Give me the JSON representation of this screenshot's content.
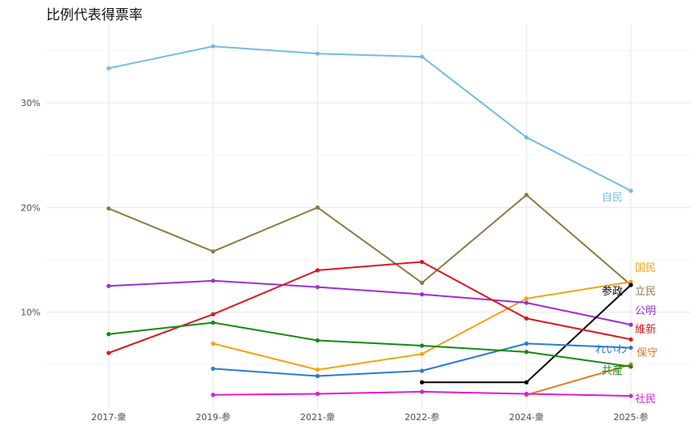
{
  "chart_data": {
    "type": "line",
    "title": "比例代表得票率",
    "xlabel": "",
    "ylabel": "",
    "categories": [
      "2017-衆",
      "2019-参",
      "2021-衆",
      "2022-参",
      "2024-衆",
      "2025-参"
    ],
    "yticks": [
      "10%",
      "20%",
      "30%"
    ],
    "ylim": [
      1.0,
      37.5
    ],
    "grid": true,
    "legend": "none (direct labels at line ends)",
    "series": [
      {
        "name": "自民",
        "color": "#74BBE7",
        "values": [
          33.3,
          35.4,
          34.7,
          34.4,
          26.7,
          21.6
        ]
      },
      {
        "name": "立民",
        "color": "#8C7B45",
        "values": [
          19.9,
          15.8,
          20.0,
          12.8,
          21.2,
          12.6
        ]
      },
      {
        "name": "国民",
        "color": "#F5A20E",
        "values": [
          null,
          7.0,
          4.5,
          6.0,
          11.3,
          12.9
        ]
      },
      {
        "name": "公明",
        "color": "#9B2FD8",
        "values": [
          12.5,
          13.0,
          12.4,
          11.7,
          10.9,
          8.8
        ]
      },
      {
        "name": "参政",
        "color": "#000000",
        "values": [
          null,
          null,
          null,
          3.3,
          3.3,
          12.6
        ]
      },
      {
        "name": "維新",
        "color": "#E0161E",
        "values": [
          6.1,
          9.8,
          14.0,
          14.8,
          9.4,
          7.4
        ]
      },
      {
        "name": "れいわ",
        "color": "#2A7BD3",
        "values": [
          null,
          4.6,
          3.9,
          4.4,
          7.0,
          6.6
        ]
      },
      {
        "name": "保守",
        "color": "#E07B2B",
        "values": [
          null,
          null,
          null,
          null,
          2.1,
          5.0
        ]
      },
      {
        "name": "共産",
        "color": "#138A13",
        "values": [
          7.9,
          9.0,
          7.3,
          6.8,
          6.2,
          4.8
        ]
      },
      {
        "name": "社民",
        "color": "#E01AD3",
        "values": [
          null,
          2.1,
          2.2,
          2.4,
          2.2,
          2.0
        ]
      }
    ]
  }
}
